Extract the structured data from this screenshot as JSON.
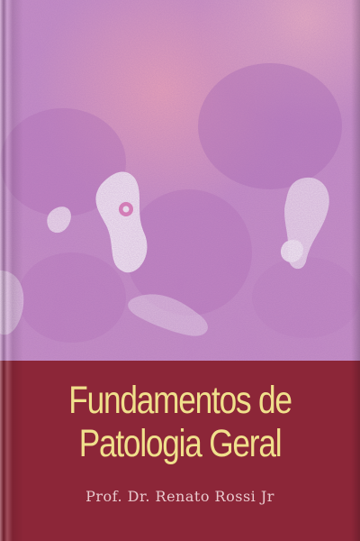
{
  "cover": {
    "title_line1": "Fundamentos de",
    "title_line2": "Patologia Geral",
    "author": "Prof. Dr. Renato Rossi Jr"
  },
  "colors": {
    "band": "#8c2638",
    "title": "#f0e08c",
    "author": "#e8c9cd",
    "tissue_base": "#c98ec7",
    "tissue_pink": "#e2a0b9",
    "vessel": "#f4eef4"
  }
}
